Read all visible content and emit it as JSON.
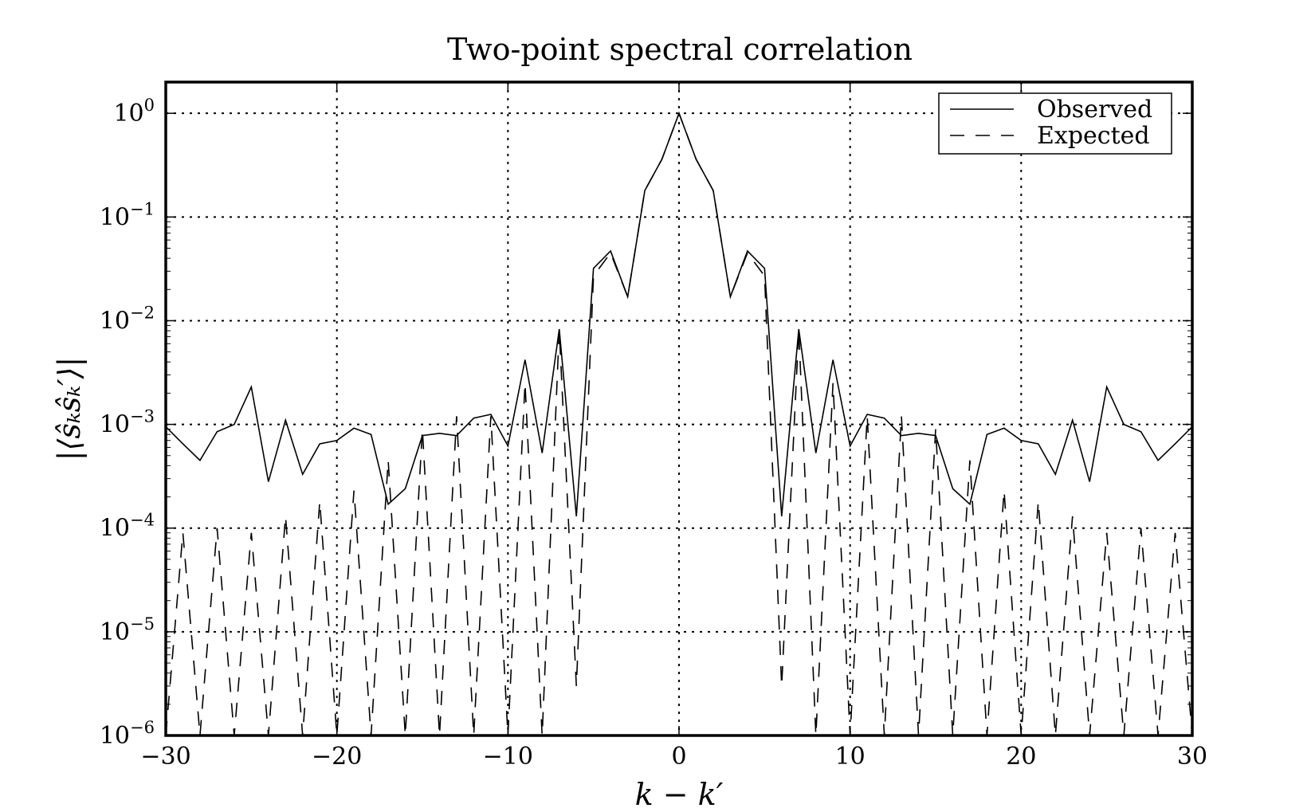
{
  "chart_data": {
    "type": "line",
    "title": "Two-point spectral correlation",
    "xlabel": "k − k′",
    "ylabel": "|⟨ŝₖŝₖ′⟩|",
    "xlim": [
      -30,
      30
    ],
    "ylim": [
      1e-06,
      2
    ],
    "yscale": "log",
    "grid": true,
    "legend_position": "top-right",
    "x_ticks": [
      "−30",
      "−20",
      "−10",
      "0",
      "10",
      "20",
      "30"
    ],
    "y_ticks": [
      {
        "base": "10",
        "exp": "0"
      },
      {
        "base": "10",
        "exp": "−1"
      },
      {
        "base": "10",
        "exp": "−2"
      },
      {
        "base": "10",
        "exp": "−3"
      },
      {
        "base": "10",
        "exp": "−4"
      },
      {
        "base": "10",
        "exp": "−5"
      },
      {
        "base": "10",
        "exp": "−6"
      }
    ],
    "x": [
      -30,
      -29,
      -28,
      -27,
      -26,
      -25,
      -24,
      -23,
      -22,
      -21,
      -20,
      -19,
      -18,
      -17,
      -16,
      -15,
      -14,
      -13,
      -12,
      -11,
      -10,
      -9,
      -8,
      -7,
      -6,
      -5,
      -4,
      -3,
      -2,
      -1,
      0,
      1,
      2,
      3,
      4,
      5,
      6,
      7,
      8,
      9,
      10,
      11,
      12,
      13,
      14,
      15,
      16,
      17,
      18,
      19,
      20,
      21,
      22,
      23,
      24,
      25,
      26,
      27,
      28,
      29,
      30
    ],
    "series": [
      {
        "name": "Observed",
        "style": "solid",
        "values": [
          0.00095,
          0.00065,
          0.00045,
          0.00085,
          0.001,
          0.0023,
          0.00028,
          0.0011,
          0.00033,
          0.00065,
          0.0007,
          0.00092,
          0.0008,
          0.00017,
          0.00024,
          0.00078,
          0.00082,
          0.00078,
          0.00115,
          0.00125,
          0.00062,
          0.0042,
          0.00053,
          0.0083,
          0.00013,
          0.032,
          0.047,
          0.017,
          0.18,
          0.36,
          1.0,
          0.36,
          0.18,
          0.017,
          0.047,
          0.032,
          0.00013,
          0.0083,
          0.00053,
          0.0042,
          0.00062,
          0.00125,
          0.00115,
          0.00078,
          0.00082,
          0.00078,
          0.00024,
          0.00017,
          0.0008,
          0.00092,
          0.0007,
          0.00065,
          0.00033,
          0.0011,
          0.00028,
          0.0023,
          0.001,
          0.00085,
          0.00045,
          0.00065,
          0.00095
        ]
      },
      {
        "name": "Expected",
        "style": "dashed",
        "values": [
          1e-06,
          9e-05,
          1e-06,
          0.0001,
          1e-06,
          9e-05,
          1e-06,
          0.00013,
          1e-06,
          0.00018,
          1e-06,
          0.00023,
          1e-06,
          0.00045,
          1e-06,
          0.0009,
          1e-06,
          0.0012,
          1e-06,
          0.0012,
          1e-06,
          0.0025,
          1e-06,
          0.0082,
          3e-06,
          0.027,
          0.045,
          0.017,
          0.18,
          0.36,
          1.0,
          0.36,
          0.18,
          0.017,
          0.045,
          0.027,
          3e-06,
          0.0082,
          1e-06,
          0.0025,
          1e-06,
          0.0012,
          1e-06,
          0.0012,
          1e-06,
          0.0009,
          1e-06,
          0.00045,
          1e-06,
          0.00023,
          1e-06,
          0.00018,
          1e-06,
          0.00013,
          1e-06,
          9e-05,
          1e-06,
          0.0001,
          1e-06,
          9e-05,
          1e-06
        ]
      }
    ]
  }
}
